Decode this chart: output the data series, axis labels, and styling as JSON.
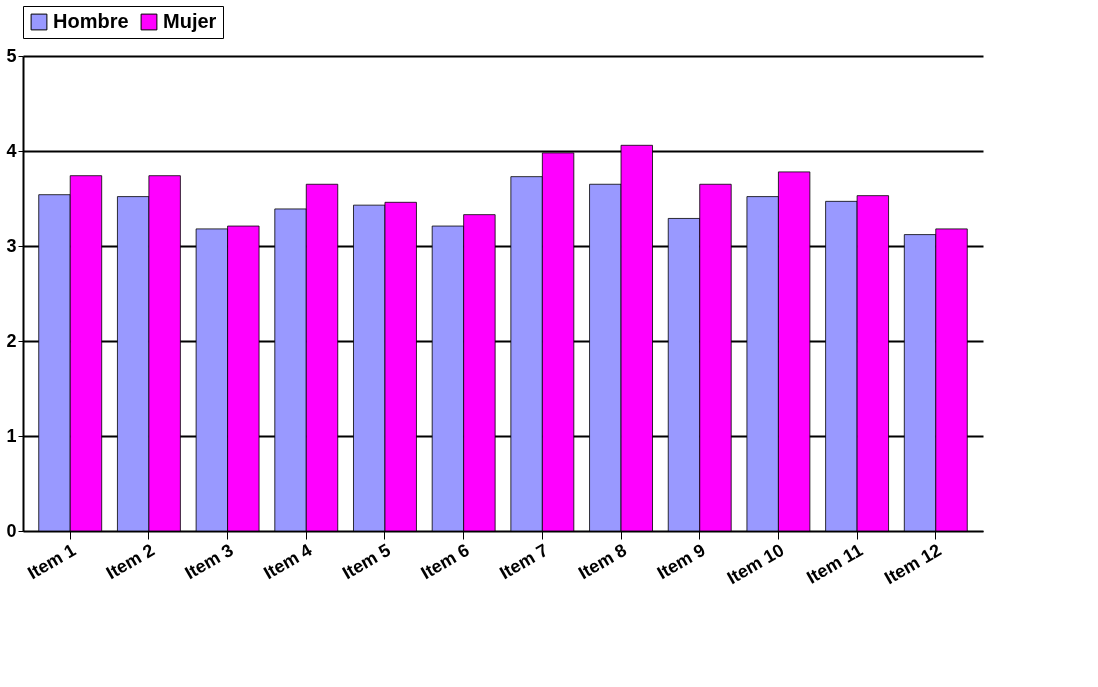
{
  "chart_data": {
    "type": "bar",
    "categories": [
      "Item 1",
      "Item 2",
      "Item 3",
      "Item 4",
      "Item 5",
      "Item 6",
      "Item 7",
      "Item 8",
      "Item 9",
      "Item 10",
      "Item 11",
      "Item 12"
    ],
    "series": [
      {
        "name": "Hombre",
        "color": "#9999ff",
        "values": [
          3.54,
          3.52,
          3.18,
          3.39,
          3.43,
          3.21,
          3.73,
          3.65,
          3.29,
          3.52,
          3.47,
          3.12
        ]
      },
      {
        "name": "Mujer",
        "color": "#ff00ff",
        "values": [
          3.74,
          3.74,
          3.21,
          3.65,
          3.46,
          3.33,
          3.98,
          4.06,
          3.65,
          3.78,
          3.53,
          3.18
        ]
      }
    ],
    "ylim": [
      0,
      5
    ],
    "yticks": [
      0,
      1,
      2,
      3,
      4,
      5
    ],
    "grid": "y",
    "legend": "top"
  }
}
